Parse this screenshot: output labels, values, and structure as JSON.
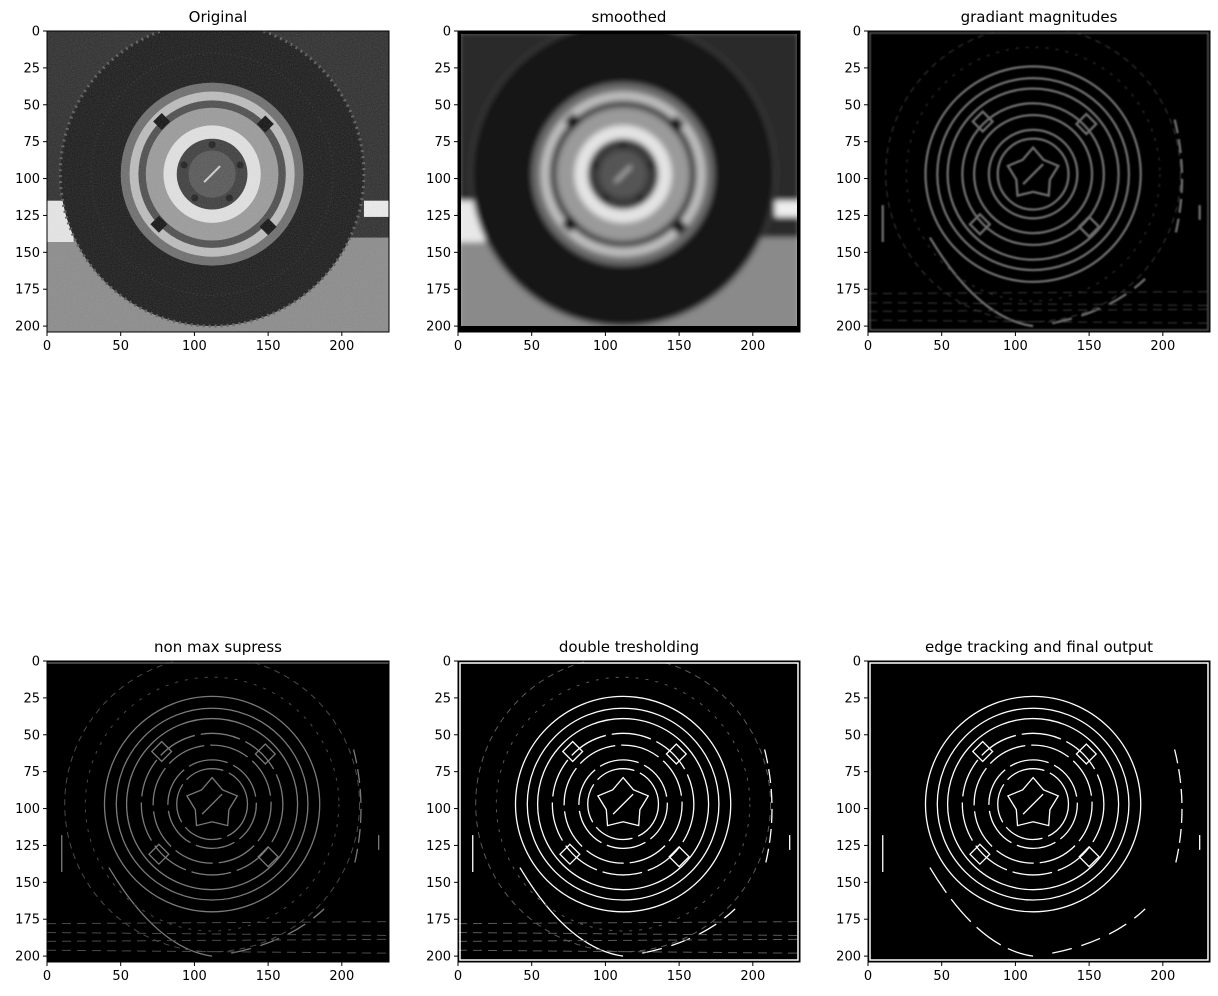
{
  "chart_data": [
    {
      "type": "image",
      "title": "Original",
      "kind": "grayscale-photo",
      "xlim": [
        0,
        232
      ],
      "ylim": [
        204,
        0
      ],
      "xticks": [
        0,
        50,
        100,
        150,
        200
      ],
      "yticks": [
        0,
        25,
        50,
        75,
        100,
        125,
        150,
        175,
        200
      ],
      "subject": "tire with steel wheel rim"
    },
    {
      "type": "image",
      "title": "smoothed",
      "kind": "grayscale-blurred",
      "xlim": [
        0,
        232
      ],
      "ylim": [
        204,
        0
      ],
      "xticks": [
        0,
        50,
        100,
        150,
        200
      ],
      "yticks": [
        0,
        25,
        50,
        75,
        100,
        125,
        150,
        175,
        200
      ]
    },
    {
      "type": "image",
      "title": "gradiant magnitudes",
      "kind": "gradient",
      "xlim": [
        0,
        232
      ],
      "ylim": [
        204,
        0
      ],
      "xticks": [
        0,
        50,
        100,
        150,
        200
      ],
      "yticks": [
        0,
        25,
        50,
        75,
        100,
        125,
        150,
        175,
        200
      ]
    },
    {
      "type": "image",
      "title": "non max supress",
      "kind": "thin-edges-dim",
      "xlim": [
        0,
        232
      ],
      "ylim": [
        204,
        0
      ],
      "xticks": [
        0,
        50,
        100,
        150,
        200
      ],
      "yticks": [
        0,
        25,
        50,
        75,
        100,
        125,
        150,
        175,
        200
      ]
    },
    {
      "type": "image",
      "title": "double tresholding",
      "kind": "thin-edges-mixed",
      "xlim": [
        0,
        232
      ],
      "ylim": [
        204,
        0
      ],
      "xticks": [
        0,
        50,
        100,
        150,
        200
      ],
      "yticks": [
        0,
        25,
        50,
        75,
        100,
        125,
        150,
        175,
        200
      ]
    },
    {
      "type": "image",
      "title": "edge tracking and final output",
      "kind": "thin-edges-strong",
      "xlim": [
        0,
        232
      ],
      "ylim": [
        204,
        0
      ],
      "xticks": [
        0,
        50,
        100,
        150,
        200
      ],
      "yticks": [
        0,
        25,
        50,
        75,
        100,
        125,
        150,
        175,
        200
      ]
    }
  ],
  "colors": {
    "axis": "#000000",
    "background": "#ffffff"
  }
}
